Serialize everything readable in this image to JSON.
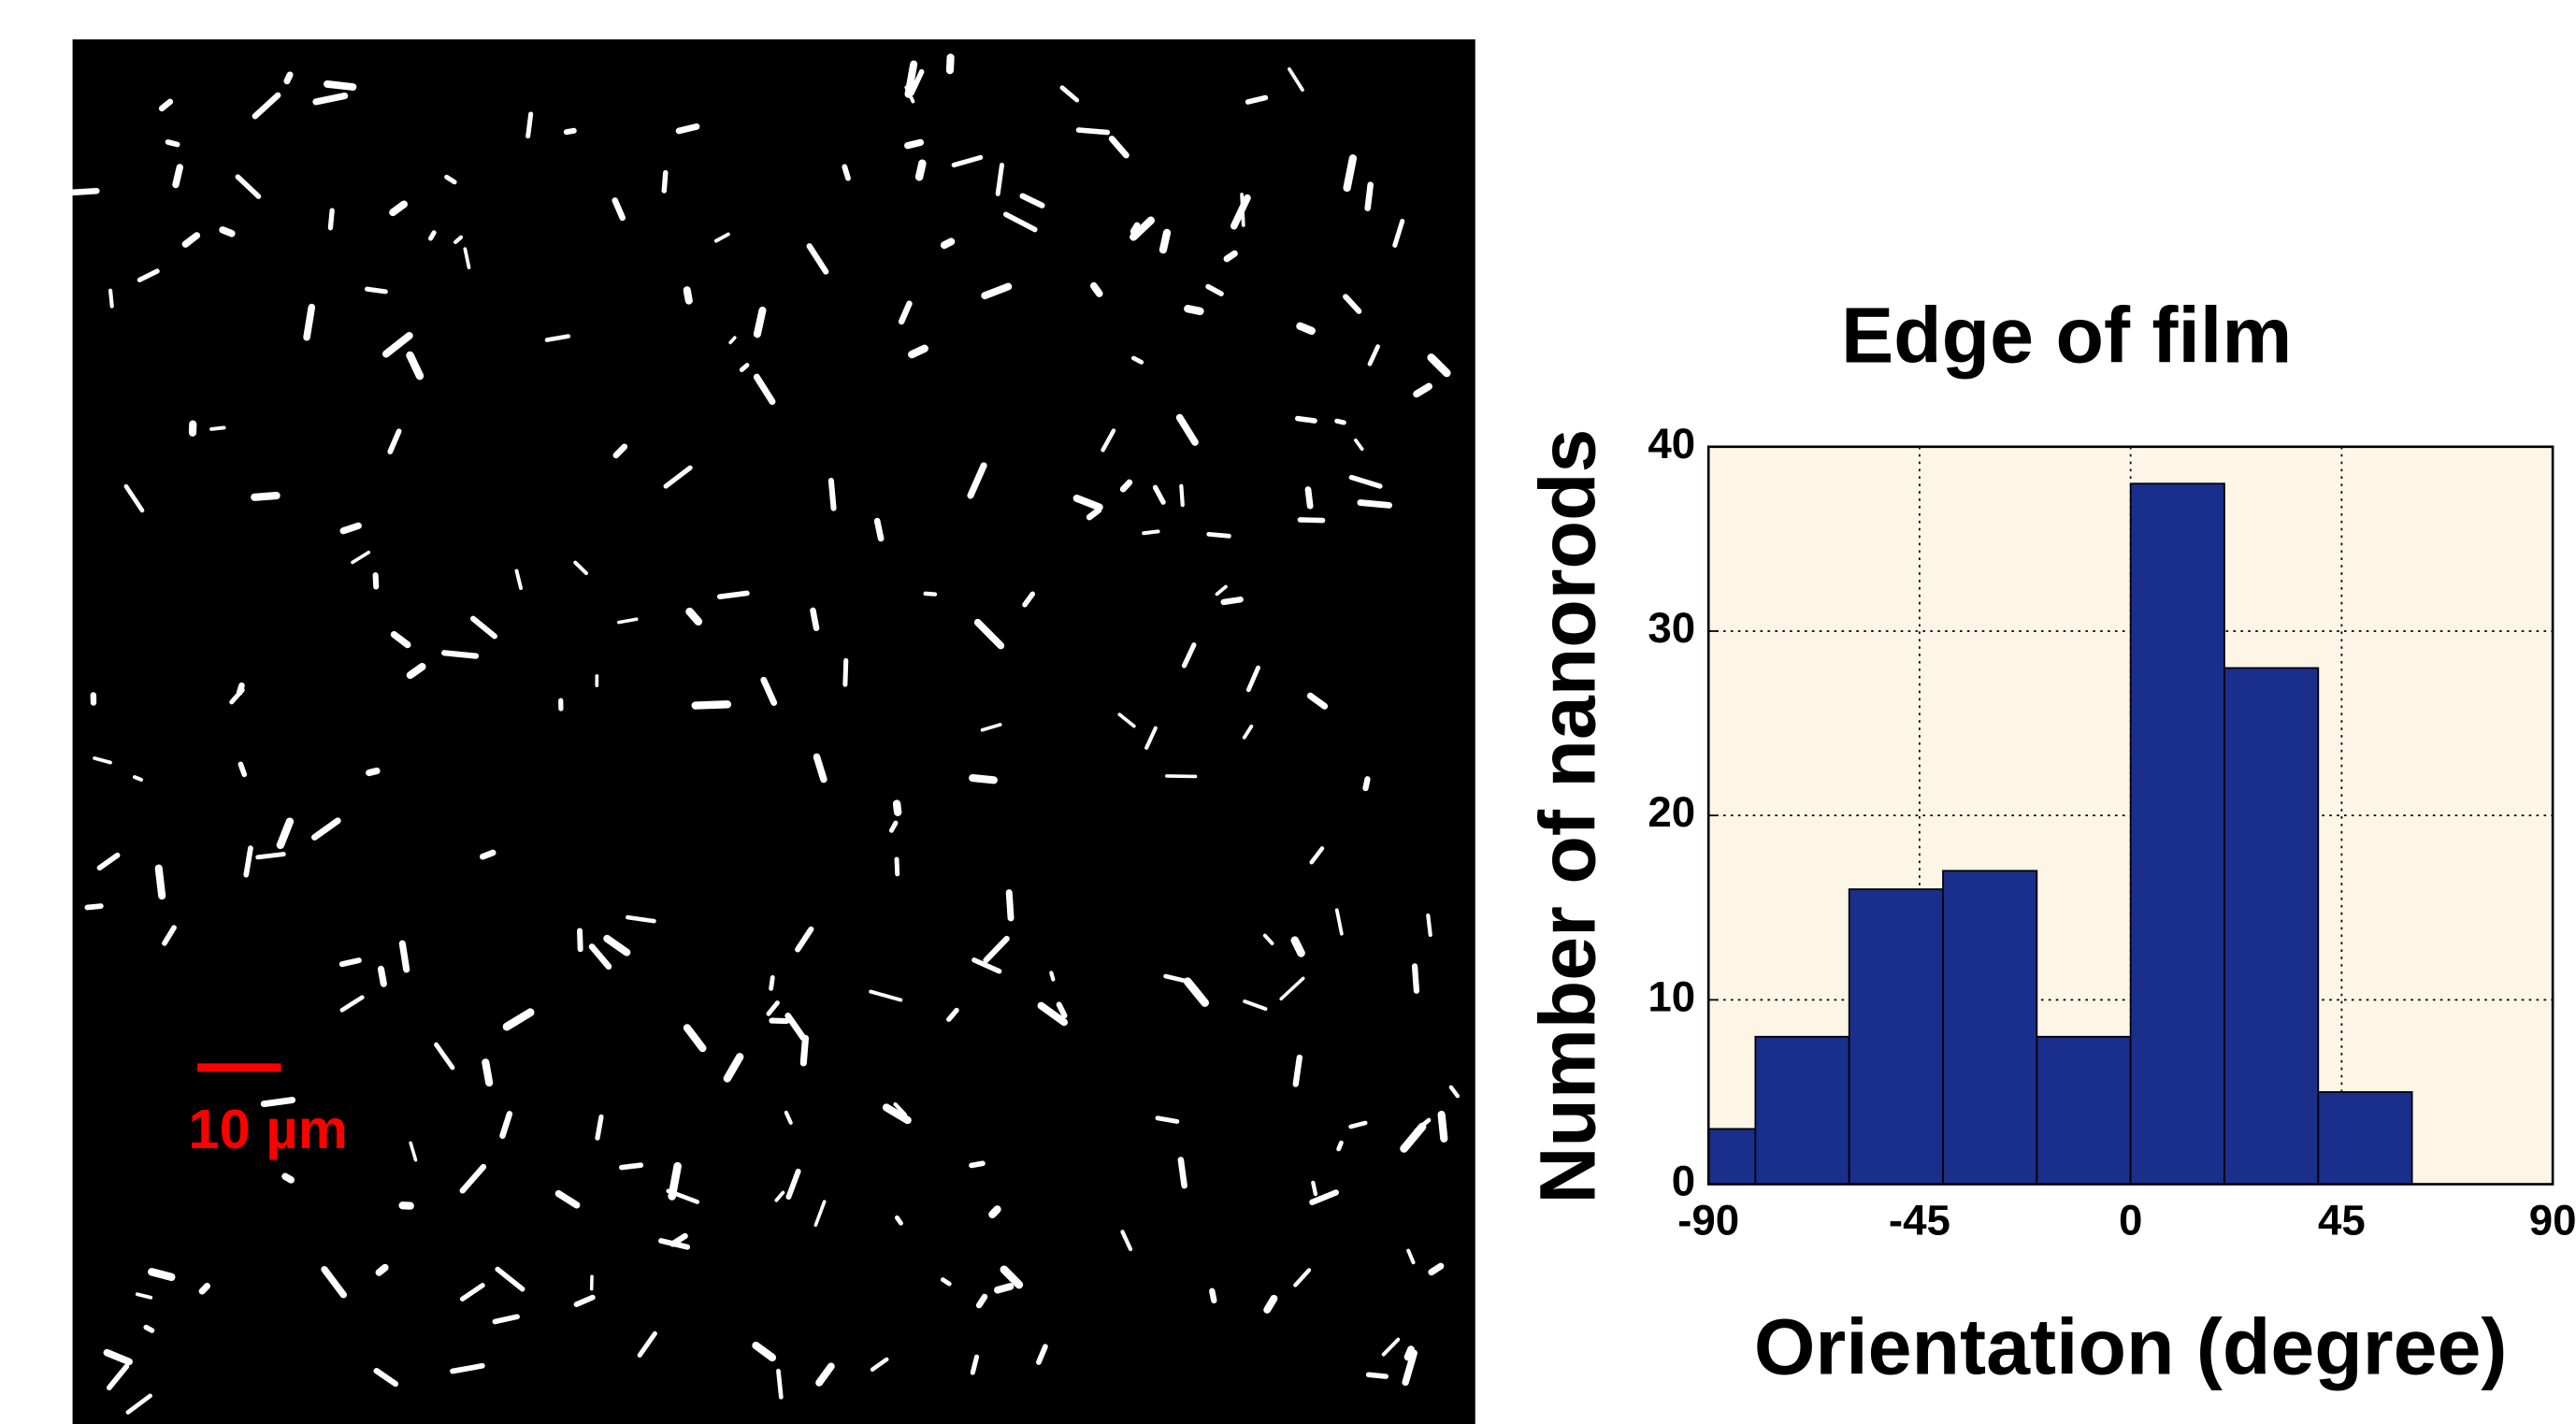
{
  "micrograph": {
    "scale_bar": "10 µm"
  },
  "chart_data": {
    "type": "histogram",
    "title": "Edge of film",
    "x_label": "Orientation (degree)",
    "y_label": "Number of nanorods",
    "bins": [
      -90,
      -80,
      -60,
      -40,
      -20,
      0,
      20,
      40,
      60
    ],
    "values": [
      3,
      8,
      16,
      17,
      8,
      38,
      28,
      5
    ],
    "color": "#1a2f8c",
    "background": "#fdf5e6",
    "xlim": [
      -90,
      90
    ],
    "xticks": [
      -90,
      -45,
      0,
      45,
      90
    ],
    "ylim": [
      0,
      40
    ],
    "yticks": [
      0,
      10,
      20,
      30,
      40
    ],
    "grid": true
  }
}
